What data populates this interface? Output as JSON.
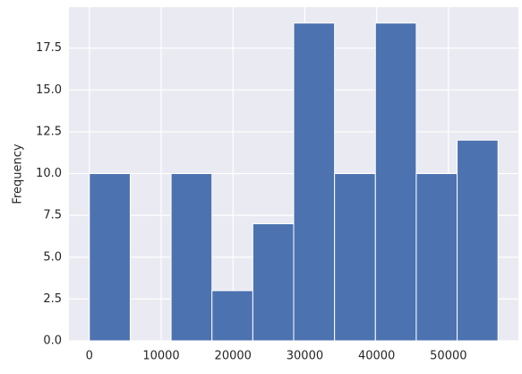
{
  "chart_data": {
    "type": "histogram",
    "ylabel": "Frequency",
    "bins": [
      0,
      5690,
      11380,
      17070,
      22760,
      28450,
      34140,
      39830,
      45520,
      51210,
      56900
    ],
    "values": [
      10,
      0,
      10,
      3,
      7,
      19,
      10,
      19,
      10,
      12
    ],
    "color": "#4c72b0",
    "xlim": [
      -2845,
      59745
    ],
    "ylim": [
      0,
      19.95
    ],
    "xticks": [
      0,
      10000,
      20000,
      30000,
      40000,
      50000
    ],
    "yticks": [
      {
        "value": 0,
        "label": "0.0"
      },
      {
        "value": 2.5,
        "label": "2.5"
      },
      {
        "value": 5,
        "label": "5.0"
      },
      {
        "value": 7.5,
        "label": "7.5"
      },
      {
        "value": 10,
        "label": "10.0"
      },
      {
        "value": 12.5,
        "label": "12.5"
      },
      {
        "value": 15,
        "label": "15.0"
      },
      {
        "value": 17.5,
        "label": "17.5"
      }
    ],
    "grid": true
  }
}
